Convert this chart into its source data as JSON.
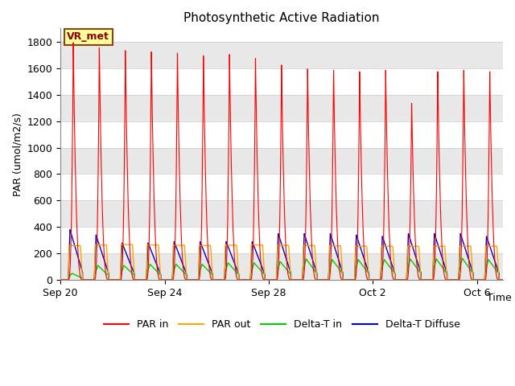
{
  "title": "Photosynthetic Active Radiation",
  "ylabel": "PAR (umol/m2/s)",
  "xlabel": "Time",
  "ylim": [
    0,
    1900
  ],
  "yticks": [
    0,
    200,
    400,
    600,
    800,
    1000,
    1200,
    1400,
    1600,
    1800
  ],
  "xtick_labels": [
    "Sep 20",
    "Sep 24",
    "Sep 28",
    "Oct 2",
    "Oct 6"
  ],
  "xtick_positions": [
    0,
    4,
    8,
    12,
    16
  ],
  "annotation_text": "VR_met",
  "annotation_bg": "#FFFF99",
  "annotation_border": "#8B4513",
  "colors": {
    "par_in": "#FF0000",
    "par_out": "#FFA500",
    "delta_t_in": "#00CC00",
    "delta_t_diffuse": "#0000CC"
  },
  "legend_labels": [
    "PAR in",
    "PAR out",
    "Delta-T in",
    "Delta-T Diffuse"
  ],
  "background_color": "#FFFFFF",
  "grid_color": "#DDDDDD",
  "num_days": 17,
  "par_in_peaks": [
    1800,
    1760,
    1740,
    1730,
    1720,
    1700,
    1710,
    1680,
    1630,
    1600,
    1590,
    1580,
    1590,
    1340,
    1580,
    1590,
    1580
  ],
  "par_out_peaks": [
    260,
    265,
    268,
    265,
    262,
    260,
    263,
    265,
    262,
    260,
    258,
    255,
    255,
    255,
    255,
    255,
    255
  ],
  "delta_t_in_peaks": [
    50,
    110,
    110,
    120,
    120,
    120,
    130,
    130,
    140,
    160,
    155,
    155,
    155,
    160,
    160,
    165,
    155
  ],
  "delta_t_diffuse_peaks": [
    380,
    340,
    280,
    280,
    290,
    290,
    290,
    290,
    350,
    350,
    350,
    340,
    330,
    350,
    350,
    350,
    330
  ],
  "title_fontsize": 11,
  "axis_fontsize": 9,
  "tick_fontsize": 9,
  "legend_fontsize": 9,
  "day_active_start": 0.3,
  "day_active_end": 0.85
}
